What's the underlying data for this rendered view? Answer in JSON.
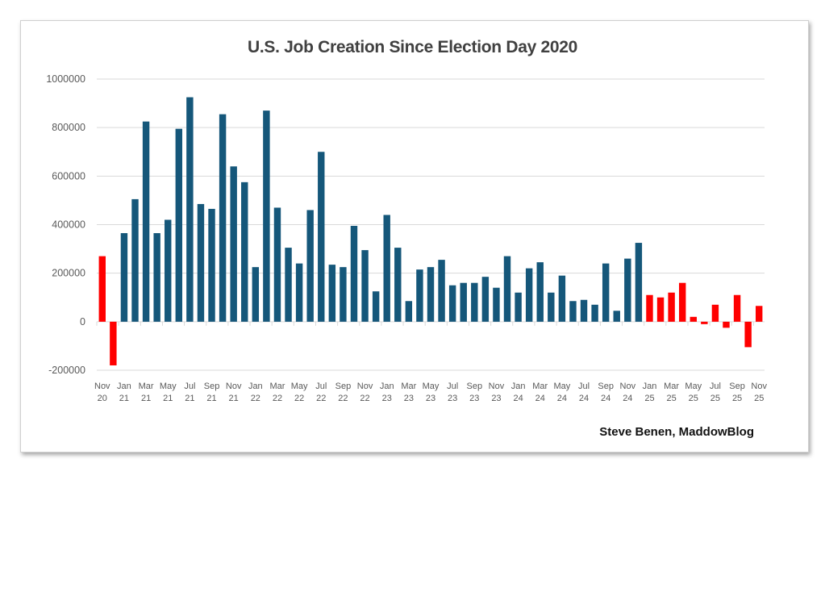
{
  "chart_data": {
    "type": "bar",
    "title": "U.S. Job Creation Since Election Day 2020",
    "credit": "Steve Benen, MaddowBlog",
    "ylim": [
      -200000,
      1000000
    ],
    "yticks": [
      -200000,
      0,
      200000,
      400000,
      600000,
      800000,
      1000000
    ],
    "grid": true,
    "colors": {
      "default": "#15577a",
      "highlight": "#ff0000"
    },
    "start_month": "Nov 2020",
    "end_month": "Nov 2025",
    "xtick_labels": [
      [
        "Nov",
        "20"
      ],
      [
        "Jan",
        "21"
      ],
      [
        "Mar",
        "21"
      ],
      [
        "May",
        "21"
      ],
      [
        "Jul",
        "21"
      ],
      [
        "Sep",
        "21"
      ],
      [
        "Nov",
        "21"
      ],
      [
        "Jan",
        "22"
      ],
      [
        "Mar",
        "22"
      ],
      [
        "May",
        "22"
      ],
      [
        "Jul",
        "22"
      ],
      [
        "Sep",
        "22"
      ],
      [
        "Nov",
        "22"
      ],
      [
        "Jan",
        "23"
      ],
      [
        "Mar",
        "23"
      ],
      [
        "May",
        "23"
      ],
      [
        "Jul",
        "23"
      ],
      [
        "Sep",
        "23"
      ],
      [
        "Nov",
        "23"
      ],
      [
        "Jan",
        "24"
      ],
      [
        "Mar",
        "24"
      ],
      [
        "May",
        "24"
      ],
      [
        "Jul",
        "24"
      ],
      [
        "Sep",
        "24"
      ],
      [
        "Nov",
        "24"
      ],
      [
        "Jan",
        "25"
      ],
      [
        "Mar",
        "25"
      ],
      [
        "May",
        "25"
      ],
      [
        "Jul",
        "25"
      ],
      [
        "Sep",
        "25"
      ],
      [
        "Nov",
        "25"
      ]
    ],
    "values": [
      270000,
      -180000,
      365000,
      505000,
      825000,
      365000,
      420000,
      795000,
      925000,
      485000,
      465000,
      855000,
      640000,
      575000,
      225000,
      870000,
      470000,
      305000,
      240000,
      460000,
      700000,
      235000,
      225000,
      395000,
      295000,
      125000,
      440000,
      305000,
      85000,
      215000,
      225000,
      255000,
      150000,
      160000,
      160000,
      185000,
      140000,
      270000,
      120000,
      220000,
      245000,
      120000,
      190000,
      85000,
      90000,
      70000,
      240000,
      45000,
      260000,
      325000,
      110000,
      100000,
      120000,
      160000,
      20000,
      -10000,
      70000,
      -25000,
      110000,
      -105000,
      65000
    ],
    "highlight": [
      "Nov 2020",
      "Dec 2020",
      "Jan 2025",
      "Feb 2025",
      "Mar 2025",
      "Apr 2025",
      "May 2025",
      "Jun 2025",
      "Jul 2025",
      "Aug 2025",
      "Sep 2025",
      "Oct 2025",
      "Nov 2025"
    ]
  }
}
